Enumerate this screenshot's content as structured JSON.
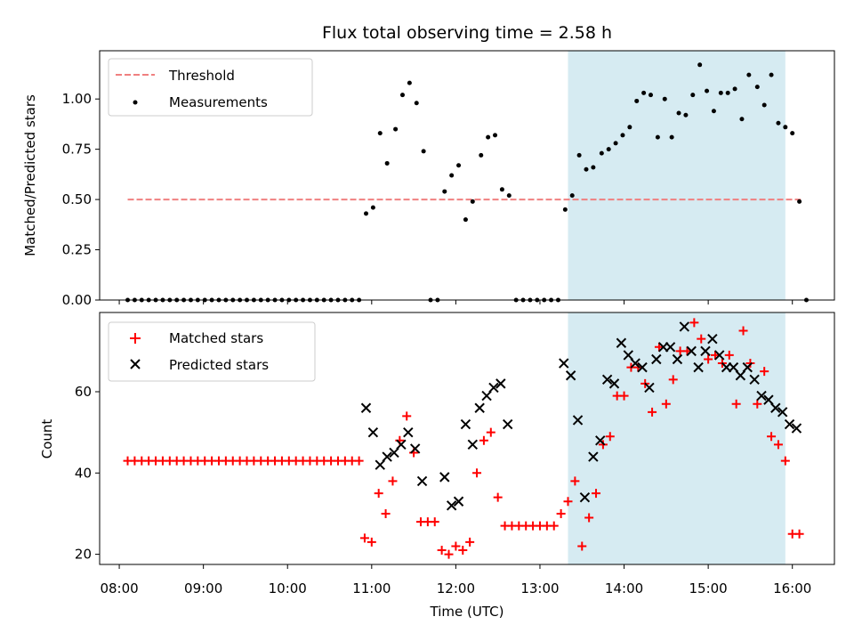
{
  "chart_data": [
    {
      "type": "scatter",
      "title": "Flux total observing time = 2.58 h",
      "xlabel": "",
      "ylabel": "Matched/Predicted stars",
      "xlim": [
        "07:46",
        "16:30"
      ],
      "ylim": [
        0,
        1.24
      ],
      "yticks": [
        "0.00",
        "0.25",
        "0.50",
        "0.75",
        "1.00"
      ],
      "shaded_span": [
        "13:20",
        "15:55"
      ],
      "legend_position": "top-left",
      "series": [
        {
          "name": "Threshold",
          "kind": "dashed-line",
          "color": "#f08080",
          "points": [
            [
              "08:06",
              0.5
            ],
            [
              "16:06",
              0.5
            ]
          ]
        },
        {
          "name": "Measurements",
          "kind": "dots",
          "color": "#000000",
          "points": [
            [
              "08:06",
              0
            ],
            [
              "08:11",
              0
            ],
            [
              "08:16",
              0
            ],
            [
              "08:21",
              0
            ],
            [
              "08:26",
              0
            ],
            [
              "08:31",
              0
            ],
            [
              "08:36",
              0
            ],
            [
              "08:41",
              0
            ],
            [
              "08:46",
              0
            ],
            [
              "08:51",
              0
            ],
            [
              "08:56",
              0
            ],
            [
              "09:01",
              0
            ],
            [
              "09:06",
              0
            ],
            [
              "09:11",
              0
            ],
            [
              "09:16",
              0
            ],
            [
              "09:21",
              0
            ],
            [
              "09:26",
              0
            ],
            [
              "09:31",
              0
            ],
            [
              "09:36",
              0
            ],
            [
              "09:41",
              0
            ],
            [
              "09:46",
              0
            ],
            [
              "09:51",
              0
            ],
            [
              "09:56",
              0
            ],
            [
              "10:01",
              0
            ],
            [
              "10:06",
              0
            ],
            [
              "10:11",
              0
            ],
            [
              "10:16",
              0
            ],
            [
              "10:21",
              0
            ],
            [
              "10:26",
              0
            ],
            [
              "10:31",
              0
            ],
            [
              "10:36",
              0
            ],
            [
              "10:41",
              0
            ],
            [
              "10:46",
              0
            ],
            [
              "10:51",
              0
            ],
            [
              "10:56",
              0.43
            ],
            [
              "11:01",
              0.46
            ],
            [
              "11:06",
              0.83
            ],
            [
              "11:11",
              0.68
            ],
            [
              "11:17",
              0.85
            ],
            [
              "11:22",
              1.02
            ],
            [
              "11:27",
              1.08
            ],
            [
              "11:32",
              0.98
            ],
            [
              "11:37",
              0.74
            ],
            [
              "11:42",
              0
            ],
            [
              "11:47",
              0
            ],
            [
              "11:52",
              0.54
            ],
            [
              "11:57",
              0.62
            ],
            [
              "12:02",
              0.67
            ],
            [
              "12:07",
              0.4
            ],
            [
              "12:12",
              0.49
            ],
            [
              "12:18",
              0.72
            ],
            [
              "12:23",
              0.81
            ],
            [
              "12:28",
              0.82
            ],
            [
              "12:33",
              0.55
            ],
            [
              "12:38",
              0.52
            ],
            [
              "12:43",
              0
            ],
            [
              "12:48",
              0
            ],
            [
              "12:53",
              0
            ],
            [
              "12:58",
              0
            ],
            [
              "13:03",
              0
            ],
            [
              "13:08",
              0
            ],
            [
              "13:13",
              0
            ],
            [
              "13:18",
              0.45
            ],
            [
              "13:23",
              0.52
            ],
            [
              "13:28",
              0.72
            ],
            [
              "13:33",
              0.65
            ],
            [
              "13:38",
              0.66
            ],
            [
              "13:44",
              0.73
            ],
            [
              "13:49",
              0.75
            ],
            [
              "13:54",
              0.78
            ],
            [
              "13:59",
              0.82
            ],
            [
              "14:04",
              0.86
            ],
            [
              "14:09",
              0.99
            ],
            [
              "14:14",
              1.03
            ],
            [
              "14:19",
              1.02
            ],
            [
              "14:24",
              0.81
            ],
            [
              "14:29",
              1.0
            ],
            [
              "14:34",
              0.81
            ],
            [
              "14:39",
              0.93
            ],
            [
              "14:44",
              0.92
            ],
            [
              "14:49",
              1.02
            ],
            [
              "14:54",
              1.17
            ],
            [
              "14:59",
              1.04
            ],
            [
              "15:04",
              0.94
            ],
            [
              "15:09",
              1.03
            ],
            [
              "15:14",
              1.03
            ],
            [
              "15:19",
              1.05
            ],
            [
              "15:24",
              0.9
            ],
            [
              "15:29",
              1.12
            ],
            [
              "15:35",
              1.06
            ],
            [
              "15:40",
              0.97
            ],
            [
              "15:45",
              1.12
            ],
            [
              "15:50",
              0.88
            ],
            [
              "15:55",
              0.86
            ],
            [
              "16:00",
              0.83
            ],
            [
              "16:05",
              0.49
            ],
            [
              "16:10",
              0
            ]
          ]
        }
      ]
    },
    {
      "type": "scatter",
      "title": "",
      "xlabel": "Time (UTC)",
      "ylabel": "Count",
      "xlim": [
        "07:46",
        "16:30"
      ],
      "xticks": [
        "08:00",
        "09:00",
        "10:00",
        "11:00",
        "12:00",
        "13:00",
        "14:00",
        "15:00",
        "16:00"
      ],
      "ylim": [
        17.5,
        79.5
      ],
      "yticks": [
        "20",
        "40",
        "60"
      ],
      "shaded_span": [
        "13:20",
        "15:55"
      ],
      "legend_position": "top-left",
      "series": [
        {
          "name": "Matched stars",
          "kind": "plus",
          "color": "#ff0000",
          "points": [
            [
              "08:06",
              43
            ],
            [
              "08:11",
              43
            ],
            [
              "08:16",
              43
            ],
            [
              "08:21",
              43
            ],
            [
              "08:26",
              43
            ],
            [
              "08:31",
              43
            ],
            [
              "08:36",
              43
            ],
            [
              "08:41",
              43
            ],
            [
              "08:46",
              43
            ],
            [
              "08:51",
              43
            ],
            [
              "08:56",
              43
            ],
            [
              "09:01",
              43
            ],
            [
              "09:06",
              43
            ],
            [
              "09:11",
              43
            ],
            [
              "09:16",
              43
            ],
            [
              "09:21",
              43
            ],
            [
              "09:26",
              43
            ],
            [
              "09:31",
              43
            ],
            [
              "09:36",
              43
            ],
            [
              "09:41",
              43
            ],
            [
              "09:46",
              43
            ],
            [
              "09:51",
              43
            ],
            [
              "09:56",
              43
            ],
            [
              "10:01",
              43
            ],
            [
              "10:06",
              43
            ],
            [
              "10:11",
              43
            ],
            [
              "10:16",
              43
            ],
            [
              "10:21",
              43
            ],
            [
              "10:26",
              43
            ],
            [
              "10:31",
              43
            ],
            [
              "10:36",
              43
            ],
            [
              "10:41",
              43
            ],
            [
              "10:46",
              43
            ],
            [
              "10:51",
              43
            ],
            [
              "10:55",
              24
            ],
            [
              "11:00",
              23
            ],
            [
              "11:05",
              35
            ],
            [
              "11:10",
              30
            ],
            [
              "11:15",
              38
            ],
            [
              "11:20",
              48
            ],
            [
              "11:25",
              54
            ],
            [
              "11:30",
              45
            ],
            [
              "11:35",
              28
            ],
            [
              "11:40",
              28
            ],
            [
              "11:45",
              28
            ],
            [
              "11:50",
              21
            ],
            [
              "11:55",
              20
            ],
            [
              "12:00",
              22
            ],
            [
              "12:05",
              21
            ],
            [
              "12:10",
              23
            ],
            [
              "12:15",
              40
            ],
            [
              "12:20",
              48
            ],
            [
              "12:25",
              50
            ],
            [
              "12:30",
              34
            ],
            [
              "12:35",
              27
            ],
            [
              "12:40",
              27
            ],
            [
              "12:45",
              27
            ],
            [
              "12:50",
              27
            ],
            [
              "12:55",
              27
            ],
            [
              "13:00",
              27
            ],
            [
              "13:05",
              27
            ],
            [
              "13:10",
              27
            ],
            [
              "13:15",
              30
            ],
            [
              "13:20",
              33
            ],
            [
              "13:25",
              38
            ],
            [
              "13:30",
              22
            ],
            [
              "13:35",
              29
            ],
            [
              "13:40",
              35
            ],
            [
              "13:45",
              47
            ],
            [
              "13:50",
              49
            ],
            [
              "13:55",
              59
            ],
            [
              "14:00",
              59
            ],
            [
              "14:05",
              66
            ],
            [
              "14:10",
              66
            ],
            [
              "14:15",
              62
            ],
            [
              "14:20",
              55
            ],
            [
              "14:25",
              71
            ],
            [
              "14:30",
              57
            ],
            [
              "14:35",
              63
            ],
            [
              "14:40",
              70
            ],
            [
              "14:45",
              70
            ],
            [
              "14:50",
              77
            ],
            [
              "14:55",
              73
            ],
            [
              "15:00",
              68
            ],
            [
              "15:05",
              69
            ],
            [
              "15:10",
              67
            ],
            [
              "15:15",
              69
            ],
            [
              "15:20",
              57
            ],
            [
              "15:25",
              75
            ],
            [
              "15:30",
              67
            ],
            [
              "15:35",
              57
            ],
            [
              "15:40",
              65
            ],
            [
              "15:45",
              49
            ],
            [
              "15:50",
              47
            ],
            [
              "15:55",
              43
            ],
            [
              "16:00",
              25
            ],
            [
              "16:05",
              25
            ]
          ]
        },
        {
          "name": "Predicted stars",
          "kind": "cross",
          "color": "#000000",
          "points": [
            [
              "10:56",
              56
            ],
            [
              "11:01",
              50
            ],
            [
              "11:06",
              42
            ],
            [
              "11:11",
              44
            ],
            [
              "11:16",
              45
            ],
            [
              "11:21",
              47
            ],
            [
              "11:26",
              50
            ],
            [
              "11:31",
              46
            ],
            [
              "11:36",
              38
            ],
            [
              "11:52",
              39
            ],
            [
              "11:57",
              32
            ],
            [
              "12:02",
              33
            ],
            [
              "12:07",
              52
            ],
            [
              "12:12",
              47
            ],
            [
              "12:17",
              56
            ],
            [
              "12:22",
              59
            ],
            [
              "12:27",
              61
            ],
            [
              "12:32",
              62
            ],
            [
              "12:37",
              52
            ],
            [
              "13:17",
              67
            ],
            [
              "13:22",
              64
            ],
            [
              "13:27",
              53
            ],
            [
              "13:32",
              34
            ],
            [
              "13:38",
              44
            ],
            [
              "13:43",
              48
            ],
            [
              "13:48",
              63
            ],
            [
              "13:53",
              62
            ],
            [
              "13:58",
              72
            ],
            [
              "14:03",
              69
            ],
            [
              "14:08",
              67
            ],
            [
              "14:13",
              66
            ],
            [
              "14:18",
              61
            ],
            [
              "14:23",
              68
            ],
            [
              "14:28",
              71
            ],
            [
              "14:33",
              71
            ],
            [
              "14:38",
              68
            ],
            [
              "14:43",
              76
            ],
            [
              "14:48",
              70
            ],
            [
              "14:53",
              66
            ],
            [
              "14:58",
              70
            ],
            [
              "15:03",
              73
            ],
            [
              "15:08",
              69
            ],
            [
              "15:13",
              66
            ],
            [
              "15:18",
              66
            ],
            [
              "15:23",
              64
            ],
            [
              "15:28",
              66
            ],
            [
              "15:33",
              63
            ],
            [
              "15:38",
              59
            ],
            [
              "15:43",
              58
            ],
            [
              "15:48",
              56
            ],
            [
              "15:53",
              55
            ],
            [
              "15:58",
              52
            ],
            [
              "16:03",
              51
            ]
          ]
        }
      ]
    }
  ]
}
